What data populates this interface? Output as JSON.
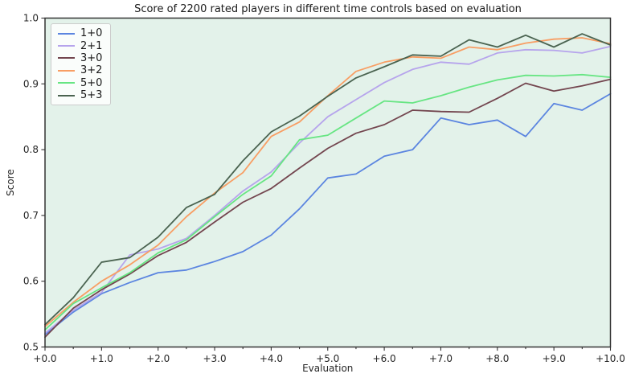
{
  "chart_data": {
    "type": "line",
    "title": "Score of 2200 rated players in different time controls based on evaluation",
    "xlabel": "Evaluation",
    "ylabel": "Score",
    "xlim": [
      0,
      10
    ],
    "ylim": [
      0.5,
      1.0
    ],
    "x_major_ticks": [
      0,
      1,
      2,
      3,
      4,
      5,
      6,
      7,
      8,
      9,
      10
    ],
    "x_major_tick_labels": [
      "+0.0",
      "+1.0",
      "+2.0",
      "+3.0",
      "+4.0",
      "+5.0",
      "+6.0",
      "+7.0",
      "+8.0",
      "+9.0",
      "+10.0"
    ],
    "x_minor_tick_step": 0.5,
    "y_major_ticks": [
      0.5,
      0.6,
      0.7,
      0.8,
      0.9,
      1.0
    ],
    "y_major_tick_labels": [
      "0.5",
      "0.6",
      "0.7",
      "0.8",
      "0.9",
      "1.0"
    ],
    "grid": false,
    "legend_position": "upper left",
    "figure_background": "#ffffff",
    "plot_background": "#e3f2ea",
    "axis_color": "#333333",
    "x": [
      0,
      0.5,
      1,
      1.5,
      2,
      2.5,
      3,
      3.5,
      4,
      4.5,
      5,
      5.5,
      6,
      6.5,
      7,
      7.5,
      8,
      8.5,
      9,
      9.5,
      10
    ],
    "series": [
      {
        "name": "1+0",
        "color": "#5b85e0",
        "values": [
          0.519,
          0.553,
          0.581,
          0.598,
          0.613,
          0.617,
          0.63,
          0.645,
          0.67,
          0.71,
          0.757,
          0.763,
          0.79,
          0.8,
          0.848,
          0.838,
          0.845,
          0.82,
          0.87,
          0.86,
          0.885
        ]
      },
      {
        "name": "2+1",
        "color": "#b6a4ec",
        "values": [
          0.521,
          0.556,
          0.583,
          0.64,
          0.649,
          0.665,
          0.7,
          0.737,
          0.766,
          0.81,
          0.85,
          0.876,
          0.902,
          0.922,
          0.933,
          0.93,
          0.947,
          0.952,
          0.951,
          0.947,
          0.957
        ]
      },
      {
        "name": "3+0",
        "color": "#73464f",
        "values": [
          0.515,
          0.559,
          0.587,
          0.611,
          0.639,
          0.659,
          0.69,
          0.72,
          0.741,
          0.772,
          0.802,
          0.825,
          0.838,
          0.86,
          0.858,
          0.857,
          0.878,
          0.901,
          0.889,
          0.897,
          0.907
        ]
      },
      {
        "name": "3+2",
        "color": "#f89e64",
        "values": [
          0.531,
          0.568,
          0.6,
          0.625,
          0.655,
          0.698,
          0.734,
          0.765,
          0.82,
          0.842,
          0.882,
          0.919,
          0.933,
          0.941,
          0.939,
          0.956,
          0.952,
          0.962,
          0.968,
          0.97,
          0.961
        ]
      },
      {
        "name": "5+0",
        "color": "#67e583",
        "values": [
          0.526,
          0.566,
          0.59,
          0.613,
          0.643,
          0.663,
          0.698,
          0.732,
          0.76,
          0.815,
          0.822,
          0.848,
          0.874,
          0.871,
          0.882,
          0.895,
          0.906,
          0.913,
          0.912,
          0.914,
          0.91
        ]
      },
      {
        "name": "5+3",
        "color": "#4a6350",
        "values": [
          0.534,
          0.575,
          0.629,
          0.636,
          0.667,
          0.712,
          0.732,
          0.783,
          0.827,
          0.851,
          0.881,
          0.909,
          0.926,
          0.944,
          0.942,
          0.967,
          0.956,
          0.974,
          0.956,
          0.976,
          0.959
        ]
      }
    ]
  }
}
